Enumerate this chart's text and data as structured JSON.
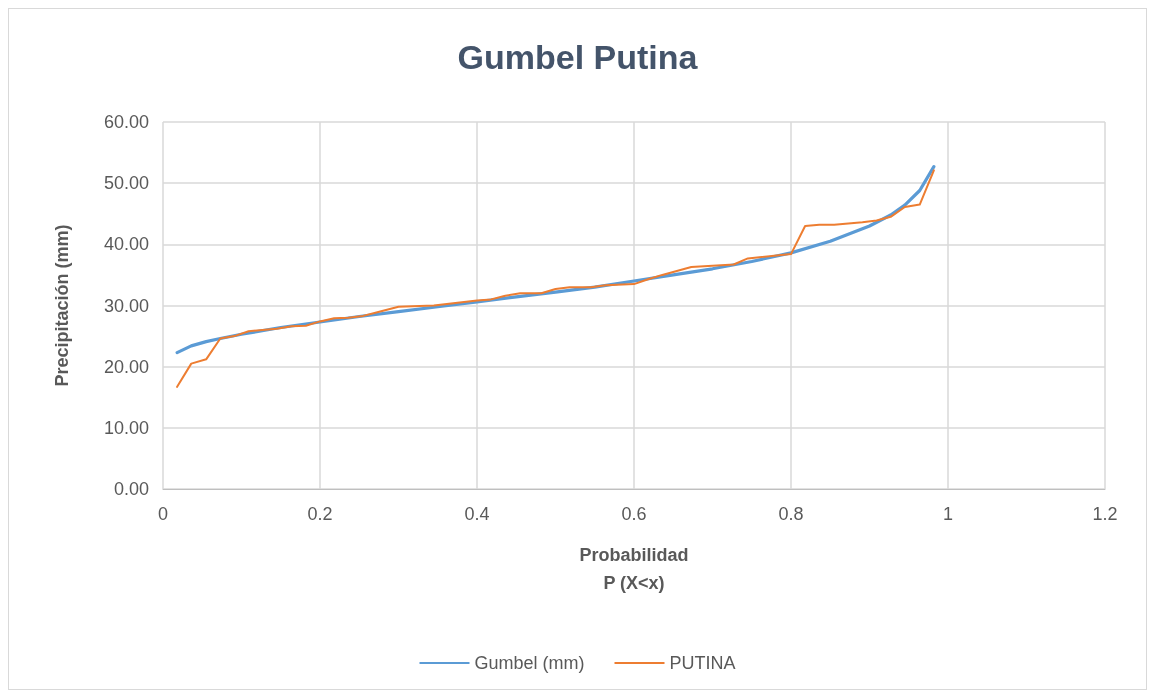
{
  "chart_data": {
    "type": "line",
    "title": "Gumbel Putina",
    "xlabel": "Probabilidad\nP (X<x)",
    "ylabel": "Precipitación (mm)",
    "xlim": [
      0,
      1.2
    ],
    "xticks": [
      0,
      0.2,
      0.4,
      0.6,
      0.8,
      1,
      1.2
    ],
    "ylim": [
      0,
      60
    ],
    "yticks": [
      {
        "value": 0,
        "label": "0.00"
      },
      {
        "value": 10,
        "label": "10.00"
      },
      {
        "value": 20,
        "label": "20.00"
      },
      {
        "value": 30,
        "label": "30.00"
      },
      {
        "value": 40,
        "label": "40.00"
      },
      {
        "value": 50,
        "label": "50.00"
      },
      {
        "value": 60,
        "label": "60.00"
      }
    ],
    "grid": true,
    "legend": "bottom",
    "marker": "none",
    "line_style": "solid",
    "series": [
      {
        "name": "Gumbel (mm)",
        "color": "#5b9bd5",
        "x": [
          0.018,
          0.036,
          0.055,
          0.073,
          0.1,
          0.15,
          0.2,
          0.25,
          0.3,
          0.35,
          0.4,
          0.45,
          0.5,
          0.55,
          0.6,
          0.65,
          0.7,
          0.75,
          0.8,
          0.85,
          0.9,
          0.927,
          0.945,
          0.964,
          0.982
        ],
        "values": [
          22.3,
          23.4,
          24.1,
          24.6,
          25.3,
          26.4,
          27.3,
          28.2,
          29.0,
          29.8,
          30.6,
          31.4,
          32.2,
          33.0,
          34.0,
          35.0,
          36.0,
          37.2,
          38.6,
          40.5,
          43.0,
          44.8,
          46.4,
          48.8,
          52.7
        ]
      },
      {
        "name": "PUTINA",
        "color": "#ed7d31",
        "x": [
          0.018,
          0.036,
          0.055,
          0.073,
          0.091,
          0.109,
          0.145,
          0.164,
          0.182,
          0.2,
          0.218,
          0.236,
          0.255,
          0.273,
          0.3,
          0.345,
          0.4,
          0.418,
          0.436,
          0.455,
          0.482,
          0.5,
          0.518,
          0.545,
          0.564,
          0.6,
          0.618,
          0.636,
          0.673,
          0.727,
          0.745,
          0.8,
          0.818,
          0.836,
          0.855,
          0.891,
          0.909,
          0.927,
          0.945,
          0.964,
          0.982
        ],
        "values": [
          16.7,
          20.5,
          21.2,
          24.6,
          25.0,
          25.8,
          26.2,
          26.6,
          26.7,
          27.4,
          27.9,
          28.0,
          28.3,
          28.9,
          29.8,
          30.0,
          30.8,
          31.0,
          31.6,
          32.0,
          32.0,
          32.7,
          33.0,
          33.0,
          33.3,
          33.5,
          34.3,
          35.0,
          36.3,
          36.7,
          37.7,
          38.4,
          43.0,
          43.2,
          43.2,
          43.6,
          43.9,
          44.5,
          46.1,
          46.5,
          52.1
        ]
      }
    ]
  }
}
